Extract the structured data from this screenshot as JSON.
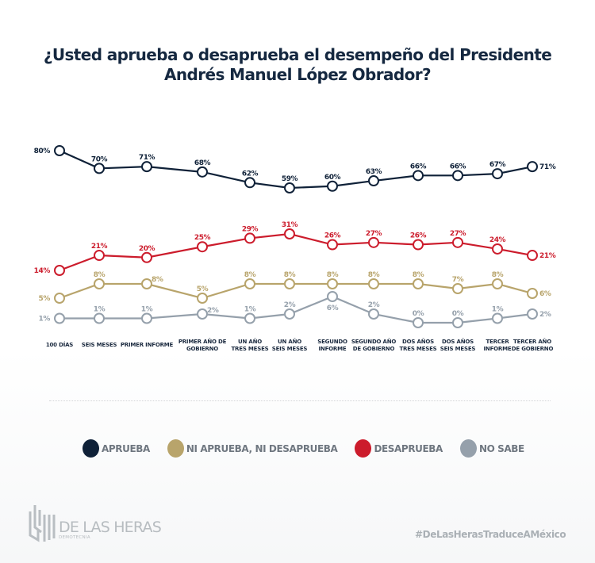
{
  "chart_data": {
    "type": "line",
    "title": "¿Usted aprueba o desaprueba el desempeño del Presidente Andrés Manuel López Obrador?",
    "title_lines": [
      "¿Usted aprueba o desaprueba el desempeño del Presidente",
      "Andrés Manuel López Obrador?"
    ],
    "xlabel": "",
    "ylabel": "",
    "grid": false,
    "legend_position": "bottom",
    "categories": [
      [
        "100 DÍAS"
      ],
      [
        "SEIS MESES"
      ],
      [
        "PRIMER INFORME"
      ],
      [
        "PRIMER AÑO DE",
        "GOBIERNO"
      ],
      [
        "UN AÑO",
        "TRES MESES"
      ],
      [
        "UN AÑO",
        "SEIS MESES"
      ],
      [
        "SEGUNDO",
        "INFORME"
      ],
      [
        "SEGUNDO AÑO",
        "DE GOBIERNO"
      ],
      [
        "DOS AÑOS",
        "TRES MESES"
      ],
      [
        "DOS AÑOS",
        "SEIS MESES"
      ],
      [
        "TERCER",
        "INFORME"
      ],
      [
        "TERCER AÑO",
        "DE GOBIERNO"
      ]
    ],
    "series": [
      {
        "name": "APRUEBA",
        "color": "#0f2138",
        "values": [
          80,
          70,
          71,
          68,
          62,
          59,
          60,
          63,
          66,
          66,
          67,
          71
        ]
      },
      {
        "name": "NI APRUEBA, NI DESAPRUEBA",
        "color": "#b8a46b",
        "values": [
          5,
          8,
          8,
          5,
          8,
          8,
          8,
          8,
          8,
          7,
          8,
          6
        ]
      },
      {
        "name": "DESAPRUEBA",
        "color": "#cc1c2c",
        "values": [
          14,
          21,
          20,
          25,
          29,
          31,
          26,
          27,
          26,
          27,
          24,
          21
        ]
      },
      {
        "name": "NO SABE",
        "color": "#95a0ab",
        "values": [
          1,
          1,
          1,
          2,
          1,
          2,
          6,
          2,
          0,
          0,
          1,
          2
        ]
      }
    ],
    "unit": "%"
  },
  "legend": [
    {
      "label": "APRUEBA",
      "color": "#0f2138"
    },
    {
      "label": "NI APRUEBA, NI DESAPRUEBA",
      "color": "#b8a46b"
    },
    {
      "label": "DESAPRUEBA",
      "color": "#cc1c2c"
    },
    {
      "label": "NO SABE",
      "color": "#95a0ab"
    }
  ],
  "footer": {
    "brand_name": "DE LAS HERAS",
    "brand_sub": "DEMOTECNIA",
    "hashtag": "#DeLasHerasTraduceAMéxico"
  }
}
